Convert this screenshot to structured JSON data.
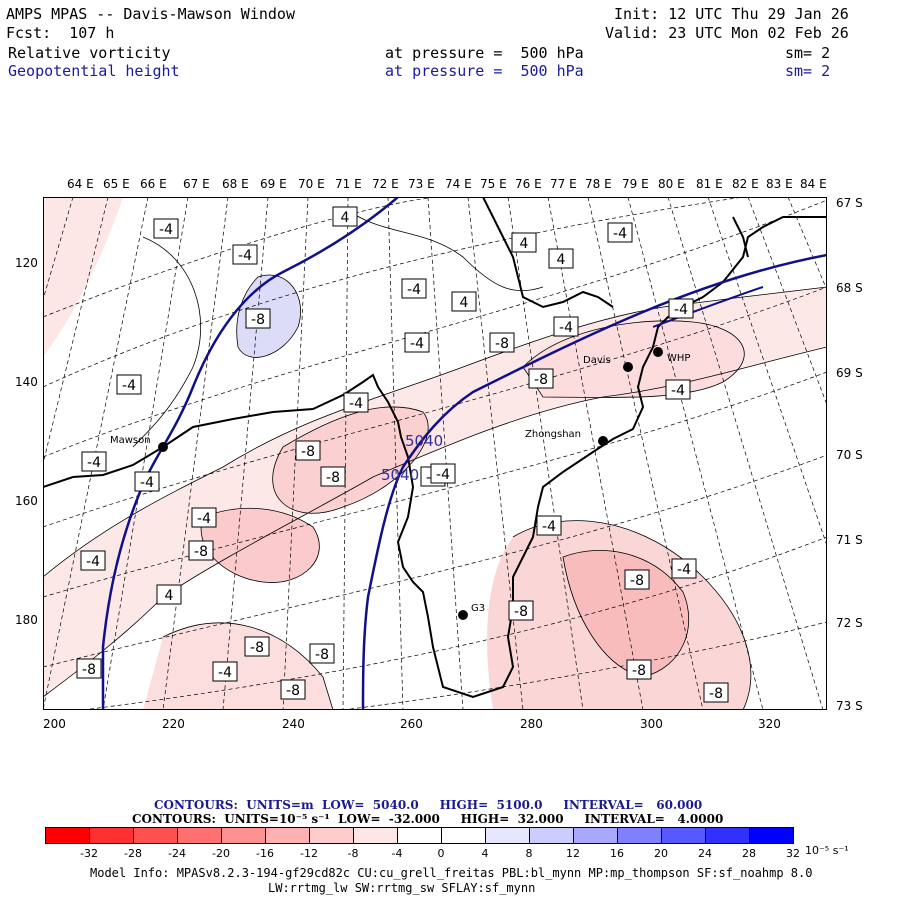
{
  "header": {
    "title": "AMPS MPAS -- Davis-Mawson Window",
    "forecast": "Fcst:  107 h",
    "init": "Init: 12 UTC Thu 29 Jan 26",
    "valid": "Valid: 23 UTC Mon 02 Feb 26",
    "field1_name": "Relative vorticity",
    "field1_level": "at pressure =  500 hPa",
    "field1_sm": "sm= 2",
    "field2_name": "Geopotential height",
    "field2_level": "at pressure =  500 hPa",
    "field2_sm": "sm= 2"
  },
  "map": {
    "lon_labels": [
      "64 E",
      "65 E",
      "66 E",
      "67 E",
      "68 E",
      "69 E",
      "70 E",
      "71 E",
      "72 E",
      "73 E",
      "74 E",
      "75 E",
      "76 E",
      "77 E",
      "78 E",
      "79 E",
      "80 E",
      "81 E",
      "82 E",
      "83 E",
      "84 E"
    ],
    "lat_labels": [
      "67 S",
      "68 S",
      "69 S",
      "70 S",
      "71 S",
      "72 S",
      "73 S"
    ],
    "x_axis": [
      "200",
      "220",
      "240",
      "260",
      "280",
      "300",
      "320"
    ],
    "y_axis": [
      "120",
      "140",
      "160",
      "180"
    ],
    "stations": [
      {
        "name": "Mawson"
      },
      {
        "name": "Davis"
      },
      {
        "name": "WHP"
      },
      {
        "name": "Zhongshan"
      },
      {
        "name": "G3"
      }
    ],
    "height_contour_labels": [
      "5040",
      "5040"
    ],
    "vorticity_labels": [
      "-4",
      "4",
      "-4",
      "-4",
      "4",
      "4",
      "-4",
      "-4",
      "4",
      "-8",
      "-4",
      "-4",
      "-8",
      "-4",
      "-8",
      "-4",
      "-4",
      "-8",
      "-8",
      "-8",
      "-8",
      "-4",
      "-4",
      "-8",
      "-4",
      "-4",
      "4",
      "-8",
      "-4",
      "-8",
      "-4",
      "-4",
      "-4",
      "-8",
      "-8",
      "-8",
      "-8",
      "-8"
    ]
  },
  "legend": {
    "contours1": "CONTOURS:  UNITS=m  LOW=  5040.0     HIGH=  5100.0     INTERVAL=   60.000",
    "contours2": "CONTOURS:  UNITS=10⁻⁵ s⁻¹  LOW=  -32.000     HIGH=  32.000     INTERVAL=   4.0000",
    "ticks": [
      "-32",
      "-28",
      "-24",
      "-20",
      "-16",
      "-12",
      "-8",
      "-4",
      "0",
      "4",
      "8",
      "12",
      "16",
      "20",
      "24",
      "28",
      "32"
    ],
    "units": "10⁻⁵ s⁻¹",
    "colors": [
      "#ff0000",
      "#ff3030",
      "#ff5050",
      "#ff7070",
      "#ff9090",
      "#ffb0b0",
      "#ffcccc",
      "#ffe6e6",
      "#ffffff",
      "#ffffff",
      "#e6e6ff",
      "#ccccff",
      "#a8a8ff",
      "#8080ff",
      "#5858ff",
      "#3030ff",
      "#0000ff"
    ]
  },
  "footer": {
    "model_info": "Model Info: MPASv8.2.3-194-gf29cd82c CU:cu_grell_freitas PBL:bl_mynn MP:mp_thompson SF:sf_noahmp 8.0",
    "model_info2": "LW:rrtmg_lw SW:rrtmg_sw SFLAY:sf_mynn"
  }
}
